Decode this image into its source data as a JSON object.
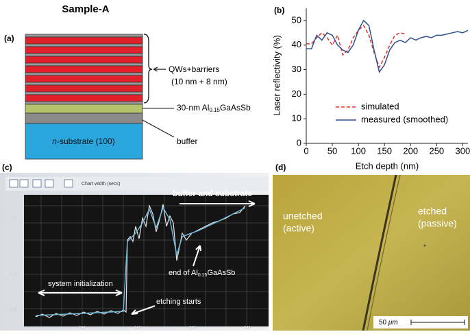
{
  "panel_a": {
    "label": "(a)",
    "title": "Sample-A",
    "qw_label": "QWs+barriers",
    "qw_thickness": "(10 nm + 8 nm)",
    "alloy_label": {
      "prefix": "30-nm Al",
      "subscript": "0.15",
      "suffix": "GaAsSb"
    },
    "buffer_label": "buffer",
    "substrate_label": {
      "italic": "n",
      "text": "-substrate (100)"
    }
  },
  "chart_data": {
    "type": "line",
    "panel_label": "(b)",
    "x_label": "Etch depth (nm)",
    "y_label": "Laser reflectivity (%)",
    "x": [
      0,
      10,
      20,
      30,
      40,
      50,
      60,
      70,
      80,
      90,
      100,
      110,
      120,
      130,
      140,
      150,
      160,
      170,
      180,
      190,
      200,
      210,
      220,
      230,
      240,
      250,
      260,
      270,
      280,
      290,
      300,
      310
    ],
    "series": [
      {
        "name": "simulated",
        "color": "#e0302a",
        "dash": true,
        "values": [
          40.5,
          40.5,
          43,
          45,
          43,
          40,
          44,
          36,
          38,
          43,
          46,
          48,
          44,
          37,
          31,
          35,
          40,
          44,
          45,
          44.5,
          null,
          null,
          null,
          null,
          null,
          null,
          null,
          null,
          null,
          null,
          null,
          null
        ]
      },
      {
        "name": "measured (smoothed)",
        "color": "#2f4f8f",
        "dash": false,
        "values": [
          38.5,
          38.5,
          44,
          42,
          45,
          44,
          40,
          38,
          37,
          40,
          46,
          50,
          48,
          38,
          29,
          32,
          38,
          41,
          42,
          41,
          43,
          42,
          43,
          43.5,
          43,
          44,
          44,
          44.5,
          45,
          45.5,
          45,
          46
        ]
      }
    ],
    "xlim": [
      0,
      310
    ],
    "ylim": [
      0,
      55
    ],
    "xticks": [
      0,
      50,
      100,
      150,
      200,
      250,
      300
    ],
    "yticks": [
      0,
      10,
      20,
      30,
      40,
      50
    ]
  },
  "panel_c": {
    "label": "(c)",
    "toolbar_text": "Chart width (secs)",
    "yticks": [
      "1.20",
      "1.10",
      "1.00"
    ],
    "xticks": [
      "150",
      "200",
      "250",
      "300"
    ],
    "buffer_note": "buffer and substrate",
    "init_note": "system initialization",
    "etch_note": "etching starts",
    "end_note": {
      "prefix": "end of Al",
      "subscript": "0.15",
      "suffix": "GaAsSb"
    }
  },
  "panel_d": {
    "label": "(d)",
    "left_line1": "unetched",
    "left_line2": "(active)",
    "right_line1": "etched",
    "right_line2": "(passive)",
    "scale_number": "50",
    "scale_unit": "μm"
  }
}
